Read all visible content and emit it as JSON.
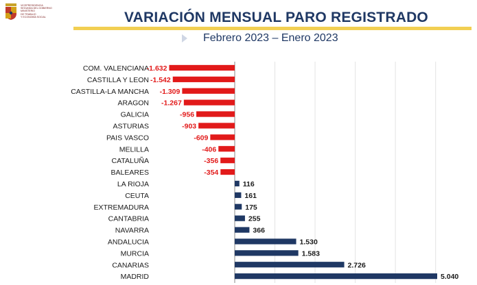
{
  "logo": {
    "lines": [
      "VICEPRESIDENCIA",
      "SEGUNDA DEL GOBIERNO",
      "MINISTERIO",
      "DE TRABAJO",
      "Y ECONOMÍA SOCIAL"
    ]
  },
  "header": {
    "title": "VARIACIÓN MENSUAL PARO REGISTRADO",
    "subtitle": "Febrero 2023 – Enero 2023"
  },
  "colors": {
    "negative": "#e21a1a",
    "positive": "#1f3864",
    "accent": "#f2cf52",
    "grid": "#e3e3e3"
  },
  "chart_data": {
    "type": "bar",
    "orientation": "horizontal",
    "title": "VARIACIÓN MENSUAL PARO REGISTRADO",
    "subtitle": "Febrero 2023 – Enero 2023",
    "xlim": [
      -1650,
      5100
    ],
    "grid": true,
    "categories": [
      "COM. VALENCIANA",
      "CASTILLA Y LEON",
      "CASTILLA-LA MANCHA",
      "ARAGON",
      "GALICIA",
      "ASTURIAS",
      "PAIS VASCO",
      "MELILLA",
      "CATALUÑA",
      "BALEARES",
      "LA RIOJA",
      "CEUTA",
      "EXTREMADURA",
      "CANTABRIA",
      "NAVARRA",
      "ANDALUCIA",
      "MURCIA",
      "CANARIAS",
      "MADRID"
    ],
    "values": [
      -1632,
      -1542,
      -1309,
      -1267,
      -956,
      -903,
      -609,
      -406,
      -356,
      -354,
      116,
      161,
      175,
      255,
      366,
      1530,
      1583,
      2726,
      5040
    ],
    "labels": [
      "-1.632",
      "-1.542",
      "-1.309",
      "-1.267",
      "-956",
      "-903",
      "-609",
      "-406",
      "-356",
      "-354",
      "116",
      "161",
      "175",
      "255",
      "366",
      "1.530",
      "1.583",
      "2.726",
      "5.040"
    ]
  }
}
